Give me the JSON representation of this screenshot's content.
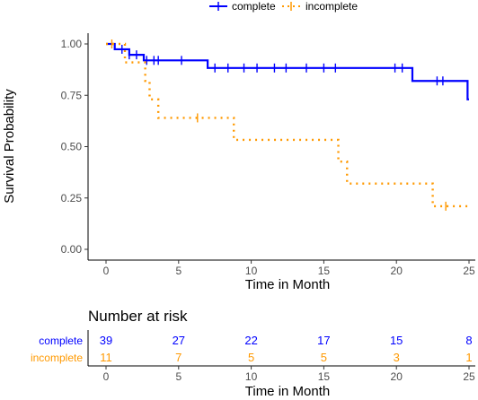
{
  "chart_data": [
    {
      "type": "line",
      "kind": "kaplan-meier",
      "xlabel": "Time in Month",
      "ylabel": "Survival Probability",
      "xlim": [
        0,
        25
      ],
      "ylim": [
        0,
        1
      ],
      "xticks": [
        "0",
        "5",
        "10",
        "15",
        "20",
        "25"
      ],
      "yticks": [
        "0.00",
        "0.25",
        "0.50",
        "0.75",
        "1.00"
      ],
      "grid": false,
      "legend_position": "top",
      "series": [
        {
          "name": "complete",
          "color": "#0000ff",
          "line_style": "solid",
          "steps": [
            [
              0,
              1.0
            ],
            [
              0.6,
              0.974
            ],
            [
              1.6,
              0.947
            ],
            [
              2.6,
              0.92
            ],
            [
              3.2,
              0.92
            ],
            [
              7.0,
              0.883
            ],
            [
              21.1,
              0.883
            ],
            [
              21.1,
              0.82
            ],
            [
              24.9,
              0.82
            ],
            [
              24.9,
              0.73
            ],
            [
              25,
              0.73
            ]
          ],
          "censored": [
            [
              1.1,
              0.974
            ],
            [
              1.6,
              0.947
            ],
            [
              2.1,
              0.947
            ],
            [
              2.8,
              0.92
            ],
            [
              3.3,
              0.92
            ],
            [
              3.6,
              0.92
            ],
            [
              5.2,
              0.92
            ],
            [
              7.5,
              0.883
            ],
            [
              8.4,
              0.883
            ],
            [
              9.5,
              0.883
            ],
            [
              10.4,
              0.883
            ],
            [
              11.6,
              0.883
            ],
            [
              12.4,
              0.883
            ],
            [
              13.8,
              0.883
            ],
            [
              15.0,
              0.883
            ],
            [
              15.8,
              0.883
            ],
            [
              19.9,
              0.883
            ],
            [
              20.4,
              0.883
            ],
            [
              22.8,
              0.82
            ],
            [
              23.2,
              0.82
            ]
          ]
        },
        {
          "name": "incomplete",
          "color": "#ff9900",
          "line_style": "dotted",
          "steps": [
            [
              0,
              1.0
            ],
            [
              1.3,
              0.91
            ],
            [
              2.7,
              0.91
            ],
            [
              2.7,
              0.82
            ],
            [
              3.0,
              0.82
            ],
            [
              3.0,
              0.73
            ],
            [
              3.6,
              0.73
            ],
            [
              3.6,
              0.64
            ],
            [
              8.8,
              0.64
            ],
            [
              8.8,
              0.533
            ],
            [
              16.0,
              0.533
            ],
            [
              16.0,
              0.427
            ],
            [
              16.6,
              0.427
            ],
            [
              16.6,
              0.32
            ],
            [
              22.5,
              0.32
            ],
            [
              22.5,
              0.21
            ],
            [
              25,
              0.21
            ]
          ],
          "censored": [
            [
              0.4,
              1.0
            ],
            [
              6.3,
              0.64
            ],
            [
              23.4,
              0.21
            ]
          ]
        }
      ]
    },
    {
      "type": "table",
      "title": "Number at risk",
      "xlabel": "Time in Month",
      "xlim": [
        0,
        25
      ],
      "xticks": [
        "0",
        "5",
        "10",
        "15",
        "20",
        "25"
      ],
      "columns": [
        0,
        5,
        10,
        15,
        20,
        25
      ],
      "rows": [
        {
          "group": "complete",
          "color": "#0000ff",
          "values": [
            "39",
            "27",
            "22",
            "17",
            "15",
            "8"
          ]
        },
        {
          "group": "incomplete",
          "color": "#ff9900",
          "values": [
            "11",
            "7",
            "5",
            "5",
            "3",
            "1"
          ]
        }
      ]
    }
  ]
}
